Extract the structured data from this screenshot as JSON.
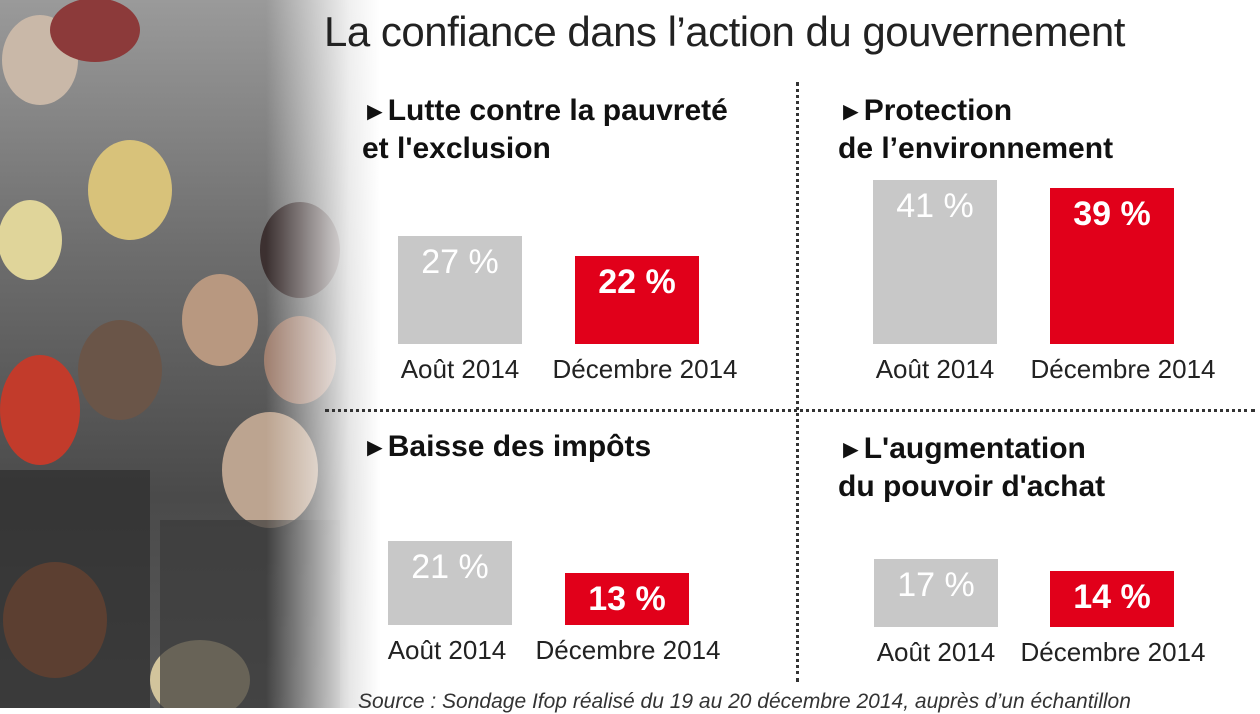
{
  "title": "La confiance dans l’action du gouvernement",
  "source": "Source : Sondage Ifop réalisé du 19 au 20 décembre 2014, auprès d’un échantillon",
  "colors": {
    "aout": "#c8c8c8",
    "decembre": "#e1001a"
  },
  "chart_data": [
    {
      "type": "bar",
      "title": "Lutte contre la pauvreté et l'exclusion",
      "title_lines": [
        "Lutte contre la pauvreté",
        "et l'exclusion"
      ],
      "categories": [
        "Août 2014",
        "Décembre 2014"
      ],
      "values": [
        27,
        22
      ],
      "labels": [
        "27 %",
        "22 %"
      ]
    },
    {
      "type": "bar",
      "title": "Protection de l’environnement",
      "title_lines": [
        "Protection",
        "de l’environnement"
      ],
      "categories": [
        "Août 2014",
        "Décembre 2014"
      ],
      "values": [
        41,
        39
      ],
      "labels": [
        "41 %",
        "39 %"
      ]
    },
    {
      "type": "bar",
      "title": "Baisse des impôts",
      "title_lines": [
        "Baisse des impôts"
      ],
      "categories": [
        "Août 2014",
        "Décembre 2014"
      ],
      "values": [
        21,
        13
      ],
      "labels": [
        "21 %",
        "13 %"
      ]
    },
    {
      "type": "bar",
      "title": "L'augmentation du pouvoir d'achat",
      "title_lines": [
        "L'augmentation",
        "du pouvoir d'achat"
      ],
      "categories": [
        "Août 2014",
        "Décembre 2014"
      ],
      "values": [
        17,
        14
      ],
      "labels": [
        "17 %",
        "14 %"
      ]
    }
  ]
}
